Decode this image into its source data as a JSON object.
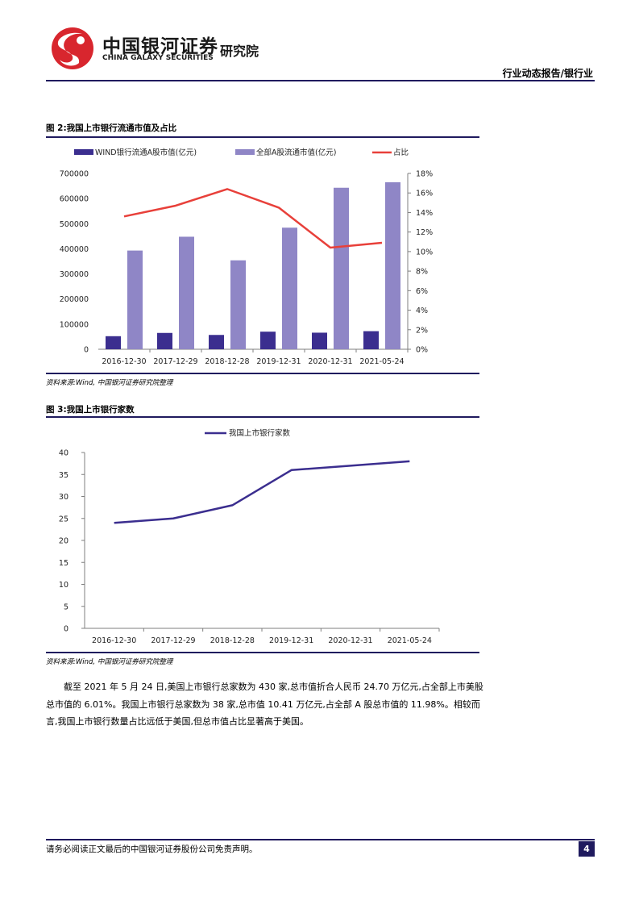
{
  "header": {
    "logo_cn": "中国银河证券",
    "logo_en": "CHINA GALAXY SECURITIES",
    "logo_institute": "研究院",
    "report_tag": "行业动态报告/银行业"
  },
  "figure2": {
    "title": "图 2:我国上市银行流通市值及占比",
    "source": "资料来源:Wind, 中国银河证券研究院整理"
  },
  "figure3": {
    "title": "图 3:我国上市银行家数",
    "source": "资料来源:Wind, 中国银河证券研究院整理"
  },
  "chart_data": [
    {
      "type": "bar",
      "categories": [
        "2016-12-30",
        "2017-12-29",
        "2018-12-28",
        "2019-12-31",
        "2020-12-31",
        "2021-05-24"
      ],
      "series": [
        {
          "name": "WIND银行流通A股市值(亿元)",
          "type": "bar",
          "axis": "left",
          "color": "#3b2e8f",
          "values": [
            52000,
            65000,
            57000,
            70000,
            66000,
            72000
          ]
        },
        {
          "name": "全部A股流通市值(亿元)",
          "type": "bar",
          "axis": "left",
          "color": "#8f86c6",
          "values": [
            393000,
            448000,
            354000,
            484000,
            643000,
            665000
          ]
        },
        {
          "name": "占比",
          "type": "line",
          "axis": "right",
          "color": "#e8403a",
          "values": [
            13.6,
            14.7,
            16.4,
            14.5,
            10.4,
            10.9
          ]
        }
      ],
      "y_left": {
        "ylim": [
          0,
          700000
        ],
        "ticks": [
          "0",
          "100000",
          "200000",
          "300000",
          "400000",
          "500000",
          "600000",
          "700000"
        ]
      },
      "y_right": {
        "ylim": [
          0,
          18
        ],
        "ticks": [
          "0%",
          "2%",
          "4%",
          "6%",
          "8%",
          "10%",
          "12%",
          "14%",
          "16%",
          "18%"
        ]
      },
      "legend": "top"
    },
    {
      "type": "line",
      "categories": [
        "2016-12-30",
        "2017-12-29",
        "2018-12-28",
        "2019-12-31",
        "2020-12-31",
        "2021-05-24"
      ],
      "series": [
        {
          "name": "我国上市银行家数",
          "color": "#3b2e8f",
          "values": [
            24,
            25,
            28,
            36,
            37,
            38
          ]
        }
      ],
      "ylim": [
        0,
        40
      ],
      "ticks": [
        "0",
        "5",
        "10",
        "15",
        "20",
        "25",
        "30",
        "35",
        "40"
      ],
      "legend": "top"
    }
  ],
  "body_text": "截至 2021 年 5 月 24 日,美国上市银行总家数为 430 家,总市值折合人民币 24.70 万亿元,占全部上市美股总市值的 6.01%。我国上市银行总家数为 38 家,总市值 10.41 万亿元,占全部 A 股总市值的 11.98%。相较而言,我国上市银行数量占比远低于美国,但总市值占比显著高于美国。",
  "footer": {
    "disclaimer": "请务必阅读正文最后的中国银河证券股份公司免责声明。",
    "page": "4"
  }
}
